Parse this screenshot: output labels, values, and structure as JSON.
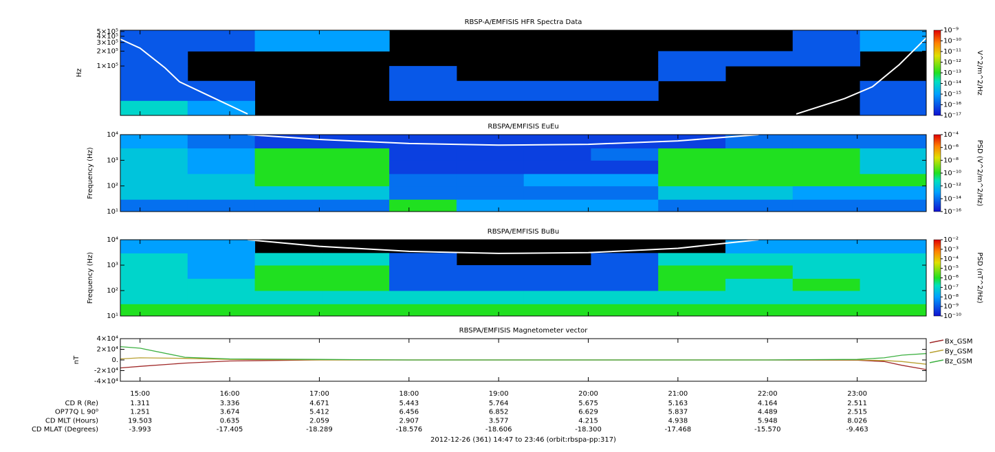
{
  "chart_data": [
    {
      "type": "spectrogram",
      "title": "RBSP-A/EMFISIS  HFR Spectra Data",
      "ylabel": "Hz",
      "log_y": true,
      "xlim": [
        14.78,
        23.77
      ],
      "ylim": [
        10000,
        530000
      ],
      "yticks": [
        {
          "value": 100000,
          "label": "1×10⁵"
        },
        {
          "value": 200000,
          "label": "2×10⁵"
        },
        {
          "value": 300000,
          "label": "3×10⁵"
        },
        {
          "value": 400000,
          "label": "4×10⁵"
        },
        {
          "value": 500000,
          "label": "5×10⁵"
        }
      ],
      "x": [
        14.78,
        15.53,
        16.28,
        17.03,
        17.78,
        18.53,
        19.28,
        20.03,
        20.78,
        21.53,
        22.28,
        23.03,
        23.77
      ],
      "y": [
        10000,
        20000,
        50000,
        100000,
        200000,
        530000
      ],
      "values": [
        [
          1e-14,
          1e-15,
          null,
          null,
          null,
          null,
          null,
          null,
          null,
          null,
          null,
          1e-16
        ],
        [
          1e-16,
          1e-16,
          null,
          null,
          1e-16,
          1e-16,
          1e-16,
          1e-16,
          null,
          null,
          null,
          1e-16
        ],
        [
          1e-16,
          null,
          null,
          null,
          1e-16,
          null,
          null,
          null,
          1e-16,
          null,
          null,
          null
        ],
        [
          1e-16,
          null,
          null,
          null,
          null,
          null,
          null,
          null,
          1e-16,
          1e-16,
          1e-16,
          null
        ],
        [
          1e-16,
          1e-16,
          1e-15,
          1e-15,
          null,
          null,
          null,
          null,
          null,
          null,
          1e-16,
          1e-15
        ]
      ],
      "zlabel": "V^2/m^2/Hz",
      "zlim": [
        1e-17,
        1e-09
      ],
      "zticks": [
        {
          "value": 1e-09,
          "label": "10⁻⁹"
        },
        {
          "value": 1e-10,
          "label": "10⁻¹⁰"
        },
        {
          "value": 1e-11,
          "label": "10⁻¹¹"
        },
        {
          "value": 1e-12,
          "label": "10⁻¹²"
        },
        {
          "value": 1e-13,
          "label": "10⁻¹³"
        },
        {
          "value": 1e-14,
          "label": "10⁻¹⁴"
        },
        {
          "value": 1e-15,
          "label": "10⁻¹⁵"
        },
        {
          "value": 1e-16,
          "label": "10⁻¹⁶"
        },
        {
          "value": 1e-17,
          "label": "10⁻¹⁷"
        }
      ],
      "line": {
        "color": "#ffffff",
        "x": [
          14.78,
          15.0,
          15.28,
          15.44,
          15.75,
          16.2,
          22.32,
          22.86,
          23.17,
          23.47,
          23.77
        ],
        "values": [
          350000,
          230000,
          91000,
          48000,
          26000,
          10700,
          10700,
          22000,
          38000,
          107000,
          370000
        ]
      }
    },
    {
      "type": "spectrogram",
      "title": "RBSPA/EMFISIS  EuEu",
      "ylabel": "Frequency (Hz)",
      "log_y": true,
      "xlim": [
        14.78,
        23.77
      ],
      "ylim": [
        10,
        10000
      ],
      "yticks": [
        {
          "value": 10,
          "label": "10¹"
        },
        {
          "value": 100,
          "label": "10²"
        },
        {
          "value": 1000,
          "label": "10³"
        },
        {
          "value": 10000,
          "label": "10⁴"
        }
      ],
      "x": [
        14.78,
        15.53,
        16.28,
        17.03,
        17.78,
        18.53,
        19.28,
        20.03,
        20.78,
        21.53,
        22.28,
        23.03,
        23.77
      ],
      "y": [
        10,
        30,
        100,
        300,
        1000,
        3000,
        10000
      ],
      "values": [
        [
          1e-14,
          1e-14,
          1e-14,
          1e-14,
          1e-10,
          1e-13,
          1e-13,
          1e-13,
          1e-14,
          1e-14,
          1e-14,
          1e-14
        ],
        [
          1e-12,
          1e-12,
          1e-12,
          1e-12,
          1e-14,
          1e-14,
          1e-14,
          1e-14,
          1e-12,
          1e-12,
          1e-13,
          1e-13
        ],
        [
          1e-12,
          1e-12,
          1e-10,
          1e-10,
          1e-14,
          1e-14,
          1e-13,
          1e-13,
          1e-10,
          1e-10,
          1e-10,
          1e-10
        ],
        [
          1e-12,
          1e-13,
          1e-10,
          1e-10,
          1e-15,
          1e-15,
          1e-15,
          1e-15,
          1e-10,
          1e-10,
          1e-10,
          1e-12
        ],
        [
          1e-12,
          1e-13,
          1e-10,
          1e-10,
          1e-15,
          1e-15,
          1e-15,
          1e-14,
          1e-10,
          1e-10,
          1e-10,
          1e-12
        ],
        [
          1e-13,
          1e-14,
          1e-15,
          1e-15,
          1e-15,
          1e-15,
          1e-15,
          1e-15,
          1e-15,
          1e-14,
          1e-14,
          1e-14
        ]
      ],
      "zlabel": "PSD (V^2/m^2/Hz)",
      "zlim": [
        1e-16,
        0.0001
      ],
      "zticks": [
        {
          "value": 0.0001,
          "label": "10⁻⁴"
        },
        {
          "value": 1e-06,
          "label": "10⁻⁶"
        },
        {
          "value": 1e-08,
          "label": "10⁻⁸"
        },
        {
          "value": 1e-10,
          "label": "10⁻¹⁰"
        },
        {
          "value": 1e-12,
          "label": "10⁻¹²"
        },
        {
          "value": 1e-14,
          "label": "10⁻¹⁴"
        },
        {
          "value": 1e-16,
          "label": "10⁻¹⁶"
        }
      ],
      "line": {
        "color": "#ffffff",
        "x": [
          16.2,
          17.0,
          18.0,
          19.0,
          20.0,
          21.0,
          21.9
        ],
        "values": [
          10000,
          6500,
          4500,
          3900,
          4200,
          5700,
          10000
        ]
      }
    },
    {
      "type": "spectrogram",
      "title": "RBSPA/EMFISIS  BuBu",
      "ylabel": "Frequency (Hz)",
      "log_y": true,
      "xlim": [
        14.78,
        23.77
      ],
      "ylim": [
        10,
        10000
      ],
      "yticks": [
        {
          "value": 10,
          "label": "10¹"
        },
        {
          "value": 100,
          "label": "10²"
        },
        {
          "value": 1000,
          "label": "10³"
        },
        {
          "value": 10000,
          "label": "10⁴"
        }
      ],
      "x": [
        14.78,
        15.53,
        16.28,
        17.03,
        17.78,
        18.53,
        19.28,
        20.03,
        20.78,
        21.53,
        22.28,
        23.03,
        23.77
      ],
      "y": [
        10,
        30,
        100,
        300,
        1000,
        3000,
        10000
      ],
      "values": [
        [
          1e-06,
          1e-06,
          1e-06,
          1e-06,
          1e-06,
          1e-06,
          1e-06,
          1e-06,
          1e-06,
          1e-06,
          1e-06,
          1e-06
        ],
        [
          1e-07,
          1e-07,
          1e-07,
          1e-07,
          1e-07,
          1e-07,
          1e-07,
          1e-07,
          1e-07,
          1e-07,
          1e-07,
          1e-07
        ],
        [
          1e-07,
          1e-07,
          1e-06,
          1e-06,
          1e-09,
          1e-09,
          1e-09,
          1e-09,
          1e-06,
          1e-07,
          1e-06,
          1e-07
        ],
        [
          1e-07,
          1e-08,
          1e-06,
          1e-06,
          1e-09,
          1e-09,
          1e-09,
          1e-09,
          1e-06,
          1e-06,
          1e-07,
          1e-07
        ],
        [
          1e-07,
          1e-08,
          1e-07,
          1e-07,
          1e-09,
          null,
          null,
          1e-09,
          1e-07,
          1e-07,
          1e-07,
          1e-07
        ],
        [
          1e-08,
          1e-08,
          null,
          null,
          null,
          null,
          null,
          null,
          null,
          1e-08,
          1e-08,
          1e-08
        ]
      ],
      "zlabel": "PSD (nT^2/Hz)",
      "zlim": [
        1e-10,
        0.01
      ],
      "zticks": [
        {
          "value": 0.01,
          "label": "10⁻²"
        },
        {
          "value": 0.001,
          "label": "10⁻³"
        },
        {
          "value": 0.0001,
          "label": "10⁻⁴"
        },
        {
          "value": 1e-05,
          "label": "10⁻⁵"
        },
        {
          "value": 1e-06,
          "label": "10⁻⁶"
        },
        {
          "value": 1e-07,
          "label": "10⁻⁷"
        },
        {
          "value": 1e-08,
          "label": "10⁻⁸"
        },
        {
          "value": 1e-09,
          "label": "10⁻⁹"
        },
        {
          "value": 1e-10,
          "label": "10⁻¹⁰"
        }
      ],
      "line": {
        "color": "#ffffff",
        "x": [
          16.2,
          17.0,
          18.0,
          19.0,
          20.0,
          21.0,
          21.9
        ],
        "values": [
          10000,
          5500,
          3500,
          2900,
          3100,
          4600,
          10000
        ]
      }
    },
    {
      "type": "line",
      "title": "RBSPA/EMFISIS  Magnetometer vector",
      "ylabel": "nT",
      "xlim": [
        14.78,
        23.77
      ],
      "ylim": [
        -40000,
        40000
      ],
      "yticks": [
        {
          "value": 40000,
          "label": "4×10⁴"
        },
        {
          "value": 20000,
          "label": "2×10⁴"
        },
        {
          "value": 0,
          "label": "0."
        },
        {
          "value": -20000,
          "label": "-2×10⁴"
        },
        {
          "value": -40000,
          "label": "-4×10⁴"
        }
      ],
      "xticks": [
        {
          "value": 15,
          "label": "15:00"
        },
        {
          "value": 16,
          "label": "16:00"
        },
        {
          "value": 17,
          "label": "17:00"
        },
        {
          "value": 18,
          "label": "18:00"
        },
        {
          "value": 19,
          "label": "19:00"
        },
        {
          "value": 20,
          "label": "20:00"
        },
        {
          "value": 21,
          "label": "21:00"
        },
        {
          "value": 22,
          "label": "22:00"
        },
        {
          "value": 23,
          "label": "23:00"
        }
      ],
      "x": [
        14.78,
        15.0,
        15.5,
        16.0,
        17.0,
        18.0,
        19.0,
        20.0,
        21.0,
        22.0,
        23.0,
        23.3,
        23.5,
        23.77
      ],
      "series": [
        {
          "name": "Bx_GSM",
          "color": "#a02828",
          "values": [
            -15000,
            -12000,
            -6000,
            -2000,
            0,
            0,
            0,
            0,
            0,
            0,
            -500,
            -3000,
            -10000,
            -18000
          ]
        },
        {
          "name": "By_GSM",
          "color": "#b8a030",
          "values": [
            2000,
            4000,
            3000,
            1000,
            0,
            0,
            0,
            0,
            0,
            0,
            0,
            -1000,
            -3000,
            -8000
          ]
        },
        {
          "name": "Bz_GSM",
          "color": "#3cb040",
          "values": [
            25000,
            22000,
            5000,
            2000,
            1000,
            0,
            0,
            0,
            0,
            0,
            1000,
            4000,
            9000,
            12000
          ]
        }
      ]
    }
  ],
  "ephemeris": {
    "rows": [
      {
        "label": "CD R (Re)",
        "values": [
          "1.311",
          "3.336",
          "4.671",
          "5.443",
          "5.764",
          "5.675",
          "5.163",
          "4.164",
          "2.511"
        ]
      },
      {
        "label": "OP77Q L 90⁰",
        "values": [
          "1.251",
          "3.674",
          "5.412",
          "6.456",
          "6.852",
          "6.629",
          "5.837",
          "4.489",
          "2.515"
        ]
      },
      {
        "label": "CD MLT (Hours)",
        "values": [
          "19.503",
          "0.635",
          "2.059",
          "2.907",
          "3.577",
          "4.215",
          "4.938",
          "5.948",
          "8.026"
        ]
      },
      {
        "label": "CD MLAT (Degrees)",
        "values": [
          "-3.993",
          "-17.405",
          "-18.289",
          "-18.576",
          "-18.606",
          "-18.300",
          "-17.468",
          "-15.570",
          "-9.463"
        ]
      }
    ],
    "footer": "2012-12-26 (361) 14:47 to 23:46 (orbit:rbspa-pp:317)"
  }
}
